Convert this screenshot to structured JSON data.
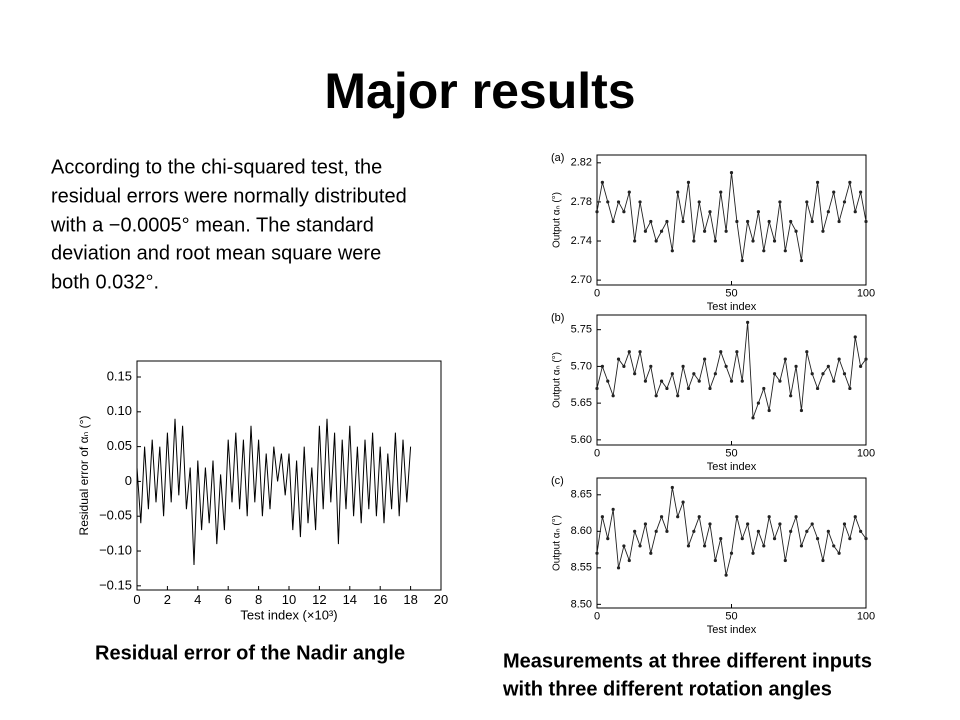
{
  "slide": {
    "title": "Major results",
    "body": [
      "According to the chi-squared test, the",
      "residual errors were normally distributed",
      "with a −0.0005° mean. The standard",
      "deviation and root mean square were",
      "both 0.032°."
    ],
    "captions": {
      "residual": "Residual error of the Nadir angle",
      "measurements": [
        "Measurements at three different inputs",
        "with three different rotation angles"
      ]
    }
  },
  "chart_data": [
    {
      "type": "line",
      "xlabel": "Test index (×10³)",
      "ylabel": "Residual error of αₙ (°)",
      "color": "#000000",
      "marker": false,
      "xlim": [
        0,
        20
      ],
      "ylim": [
        -0.156,
        0.173
      ],
      "xticks": [
        0,
        2,
        4,
        6,
        8,
        10,
        12,
        14,
        16,
        18,
        20
      ],
      "yticks": [
        {
          "value": -0.15,
          "label": "−0.15"
        },
        {
          "value": -0.1,
          "label": "−0.10"
        },
        {
          "value": -0.05,
          "label": "−0.05"
        },
        0,
        0.05,
        {
          "value": 0.1,
          "label": "0.10"
        },
        0.15
      ],
      "x": [
        0,
        0.25,
        0.5,
        0.75,
        1,
        1.25,
        1.5,
        1.75,
        2,
        2.25,
        2.5,
        2.75,
        3,
        3.25,
        3.5,
        3.75,
        4,
        4.25,
        4.5,
        4.75,
        5,
        5.25,
        5.5,
        5.75,
        6,
        6.25,
        6.5,
        6.75,
        7,
        7.25,
        7.5,
        7.75,
        8,
        8.25,
        8.5,
        8.75,
        9,
        9.25,
        9.5,
        9.75,
        10,
        10.25,
        10.5,
        10.75,
        11,
        11.25,
        11.5,
        11.75,
        12,
        12.25,
        12.5,
        12.75,
        13,
        13.25,
        13.5,
        13.75,
        14,
        14.25,
        14.5,
        14.75,
        15,
        15.25,
        15.5,
        15.75,
        16,
        16.25,
        16.5,
        16.75,
        17,
        17.25,
        17.5,
        17.75,
        18
      ],
      "values": [
        0.02,
        -0.06,
        0.05,
        -0.04,
        0.06,
        -0.03,
        0.05,
        -0.05,
        0.07,
        -0.03,
        0.09,
        -0.02,
        0.08,
        -0.04,
        0.02,
        -0.12,
        0.03,
        -0.07,
        0.02,
        -0.06,
        0.03,
        -0.09,
        0.01,
        -0.07,
        0.06,
        -0.03,
        0.07,
        -0.04,
        0.06,
        -0.05,
        0.08,
        -0.03,
        0.06,
        -0.05,
        0.04,
        -0.04,
        0.05,
        0.0,
        0.04,
        -0.02,
        0.04,
        -0.07,
        0.03,
        -0.08,
        0.05,
        -0.06,
        0.02,
        -0.07,
        0.08,
        -0.04,
        0.09,
        -0.03,
        0.07,
        -0.09,
        0.06,
        -0.04,
        0.08,
        -0.05,
        0.05,
        -0.06,
        0.06,
        -0.04,
        0.07,
        -0.05,
        0.05,
        -0.06,
        0.04,
        -0.04,
        0.07,
        -0.05,
        0.06,
        -0.03,
        0.05
      ]
    },
    {
      "type": "line",
      "title": "(a)",
      "xlabel": "Test index",
      "ylabel": "Output αₙ (°)",
      "color": "#222222",
      "marker": true,
      "xlim": [
        0,
        100
      ],
      "ylim": [
        2.695,
        2.828
      ],
      "xticks": [
        0,
        50,
        100
      ],
      "yticks": [
        {
          "value": 2.7,
          "label": "2.70"
        },
        2.74,
        2.78,
        2.82
      ],
      "x": [
        0,
        2,
        4,
        6,
        8,
        10,
        12,
        14,
        16,
        18,
        20,
        22,
        24,
        26,
        28,
        30,
        32,
        34,
        36,
        38,
        40,
        42,
        44,
        46,
        48,
        50,
        52,
        54,
        56,
        58,
        60,
        62,
        64,
        66,
        68,
        70,
        72,
        74,
        76,
        78,
        80,
        82,
        84,
        86,
        88,
        90,
        92,
        94,
        96,
        98,
        100
      ],
      "values": [
        2.77,
        2.8,
        2.78,
        2.76,
        2.78,
        2.77,
        2.79,
        2.74,
        2.78,
        2.75,
        2.76,
        2.74,
        2.75,
        2.76,
        2.73,
        2.79,
        2.76,
        2.8,
        2.74,
        2.78,
        2.75,
        2.77,
        2.74,
        2.79,
        2.75,
        2.81,
        2.76,
        2.72,
        2.76,
        2.74,
        2.77,
        2.73,
        2.76,
        2.74,
        2.78,
        2.73,
        2.76,
        2.75,
        2.72,
        2.78,
        2.76,
        2.8,
        2.75,
        2.77,
        2.79,
        2.76,
        2.78,
        2.8,
        2.77,
        2.79,
        2.76
      ]
    },
    {
      "type": "line",
      "title": "(b)",
      "xlabel": "Test index",
      "ylabel": "Output αₙ (°)",
      "color": "#222222",
      "marker": true,
      "xlim": [
        0,
        100
      ],
      "ylim": [
        5.593,
        5.77
      ],
      "xticks": [
        0,
        50,
        100
      ],
      "yticks": [
        {
          "value": 5.6,
          "label": "5.60"
        },
        5.65,
        {
          "value": 5.7,
          "label": "5.70"
        },
        5.75
      ],
      "x": [
        0,
        2,
        4,
        6,
        8,
        10,
        12,
        14,
        16,
        18,
        20,
        22,
        24,
        26,
        28,
        30,
        32,
        34,
        36,
        38,
        40,
        42,
        44,
        46,
        48,
        50,
        52,
        54,
        56,
        58,
        60,
        62,
        64,
        66,
        68,
        70,
        72,
        74,
        76,
        78,
        80,
        82,
        84,
        86,
        88,
        90,
        92,
        94,
        96,
        98,
        100
      ],
      "values": [
        5.67,
        5.7,
        5.68,
        5.66,
        5.71,
        5.7,
        5.72,
        5.69,
        5.72,
        5.68,
        5.7,
        5.66,
        5.68,
        5.67,
        5.69,
        5.66,
        5.7,
        5.67,
        5.69,
        5.68,
        5.71,
        5.67,
        5.69,
        5.72,
        5.7,
        5.68,
        5.72,
        5.68,
        5.76,
        5.63,
        5.65,
        5.67,
        5.64,
        5.69,
        5.68,
        5.71,
        5.66,
        5.7,
        5.64,
        5.72,
        5.69,
        5.67,
        5.69,
        5.7,
        5.68,
        5.71,
        5.69,
        5.67,
        5.74,
        5.7,
        5.71
      ]
    },
    {
      "type": "line",
      "title": "(c)",
      "xlabel": "Test index",
      "ylabel": "Output αₙ (°)",
      "color": "#222222",
      "marker": true,
      "xlim": [
        0,
        100
      ],
      "ylim": [
        8.495,
        8.673
      ],
      "xticks": [
        0,
        50,
        100
      ],
      "yticks": [
        {
          "value": 8.5,
          "label": "8.50"
        },
        8.55,
        {
          "value": 8.6,
          "label": "8.60"
        },
        8.65
      ],
      "x": [
        0,
        2,
        4,
        6,
        8,
        10,
        12,
        14,
        16,
        18,
        20,
        22,
        24,
        26,
        28,
        30,
        32,
        34,
        36,
        38,
        40,
        42,
        44,
        46,
        48,
        50,
        52,
        54,
        56,
        58,
        60,
        62,
        64,
        66,
        68,
        70,
        72,
        74,
        76,
        78,
        80,
        82,
        84,
        86,
        88,
        90,
        92,
        94,
        96,
        98,
        100
      ],
      "values": [
        8.57,
        8.62,
        8.59,
        8.63,
        8.55,
        8.58,
        8.56,
        8.6,
        8.58,
        8.61,
        8.57,
        8.6,
        8.62,
        8.6,
        8.66,
        8.62,
        8.64,
        8.58,
        8.6,
        8.62,
        8.58,
        8.61,
        8.56,
        8.59,
        8.54,
        8.57,
        8.62,
        8.59,
        8.61,
        8.57,
        8.6,
        8.58,
        8.62,
        8.59,
        8.61,
        8.56,
        8.6,
        8.62,
        8.58,
        8.6,
        8.61,
        8.59,
        8.56,
        8.6,
        8.58,
        8.57,
        8.61,
        8.59,
        8.62,
        8.6,
        8.59
      ]
    }
  ]
}
